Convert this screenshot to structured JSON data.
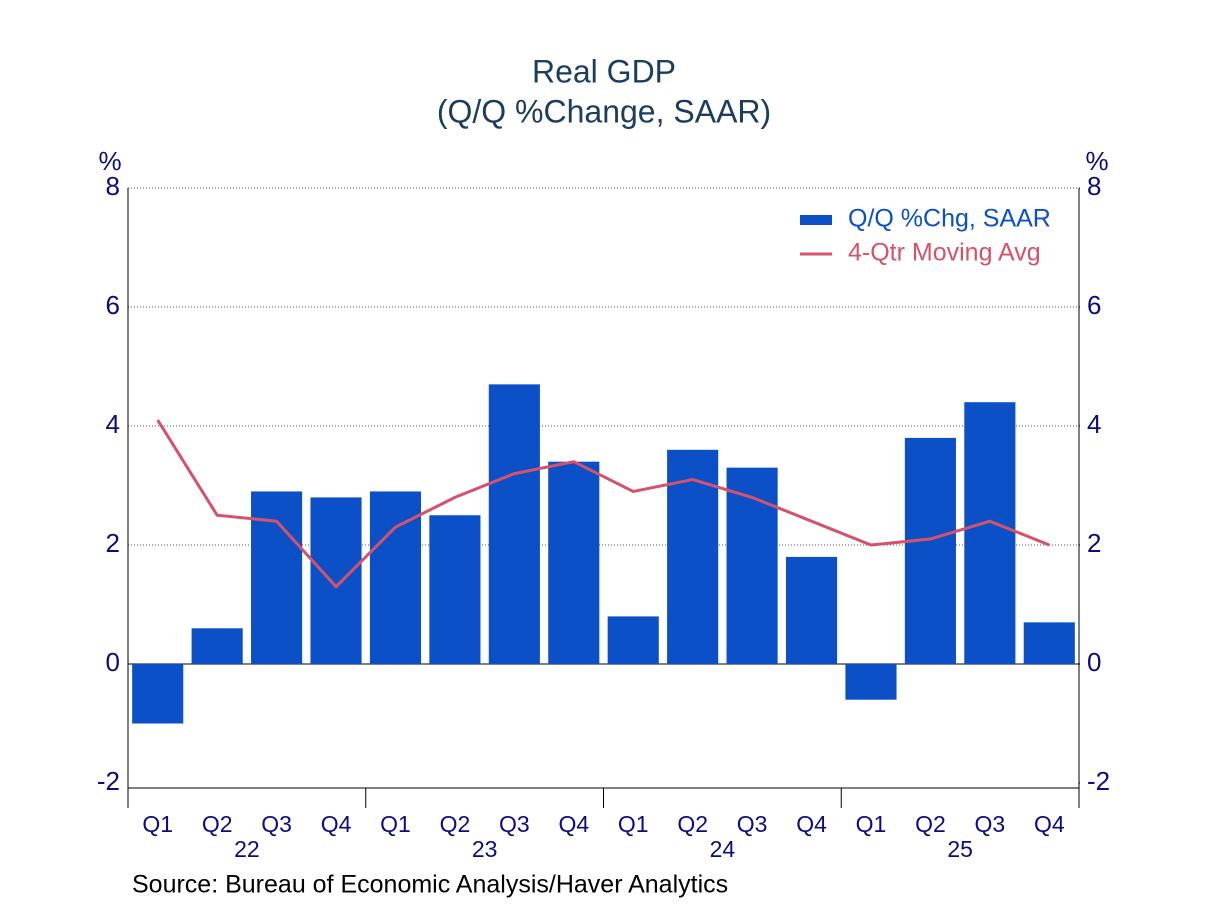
{
  "chart_data": {
    "type": "bar",
    "title": "Real GDP",
    "subtitle": "(Q/Q %Change, SAAR)",
    "y_label": "%",
    "y2_label": "%",
    "categories": [
      "Q1",
      "Q2",
      "Q3",
      "Q4",
      "Q1",
      "Q2",
      "Q3",
      "Q4",
      "Q1",
      "Q2",
      "Q3",
      "Q4",
      "Q1",
      "Q2",
      "Q3",
      "Q4"
    ],
    "groups": [
      "22",
      "23",
      "24",
      "25"
    ],
    "series": [
      {
        "name": "Q/Q %Chg, SAAR",
        "type": "bar",
        "color": "#0b50c6",
        "values": [
          -1.0,
          0.6,
          2.9,
          2.8,
          2.9,
          2.5,
          4.7,
          3.4,
          0.8,
          3.6,
          3.3,
          1.8,
          -0.6,
          3.8,
          4.4,
          0.7
        ]
      },
      {
        "name": "4-Qtr Moving Avg",
        "type": "line",
        "color": "#d6526b",
        "values": [
          4.1,
          2.5,
          2.4,
          1.3,
          2.3,
          2.8,
          3.2,
          3.4,
          2.9,
          3.1,
          2.8,
          2.4,
          2.0,
          2.1,
          2.4,
          2.0
        ]
      }
    ],
    "ylim": [
      -2,
      8
    ],
    "yticks": [
      -2,
      0,
      2,
      4,
      6,
      8
    ],
    "y2lim": [
      -2,
      8
    ],
    "y2ticks": [
      -2,
      0,
      2,
      4,
      6,
      8
    ],
    "grid": true,
    "legend": "top-right",
    "source": "Source:  Bureau of Economic Analysis/Haver Analytics"
  }
}
